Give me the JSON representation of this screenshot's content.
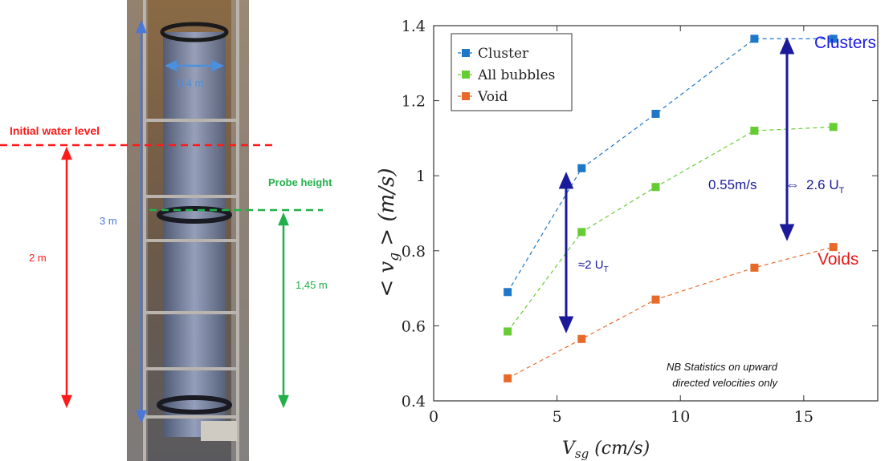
{
  "photo": {
    "diameter_label": "0,4 m",
    "water_level_label": "Initial water level",
    "probe_height_label": "Probe height",
    "column_height_label": "3 m",
    "water_depth_label": "2 m",
    "probe_distance_label": "1,45 m",
    "colors": {
      "red": "#ff1a1a",
      "green": "#22b04a",
      "blue": "#4a78d8"
    }
  },
  "chart_data": {
    "type": "line",
    "x": [
      3,
      6,
      9,
      13,
      16.2
    ],
    "series": [
      {
        "name": "Cluster",
        "values": [
          0.69,
          1.02,
          1.165,
          1.365,
          1.365
        ],
        "color": "#1f77c8"
      },
      {
        "name": "All bubbles",
        "values": [
          0.585,
          0.85,
          0.97,
          1.12,
          1.13
        ],
        "color": "#66cc33"
      },
      {
        "name": "Void",
        "values": [
          0.46,
          0.565,
          0.67,
          0.755,
          0.81
        ],
        "color": "#e86a2a"
      }
    ],
    "xlabel": "V_sg (cm/s)",
    "ylabel": "< v_g > (m/s)",
    "xlim": [
      0,
      18
    ],
    "ylim": [
      0.4,
      1.4
    ],
    "xticks": [
      "0",
      "5",
      "10",
      "15"
    ],
    "yticks": [
      "0.4",
      "0.6",
      "0.8",
      "1",
      "1.2",
      "1.4"
    ],
    "legend_position": "top-left",
    "grid": false,
    "annotations": {
      "clusters": "Clusters",
      "voids": "Voids",
      "ratio_left": "≈2 U",
      "ratio_left_sub": "T",
      "speed": "0.55m/s",
      "equiv": "⇔",
      "ratio_right": "2.6 U",
      "ratio_right_sub": "T",
      "note_line1": "NB Statistics on upward",
      "note_line2": "directed velocities only"
    }
  }
}
